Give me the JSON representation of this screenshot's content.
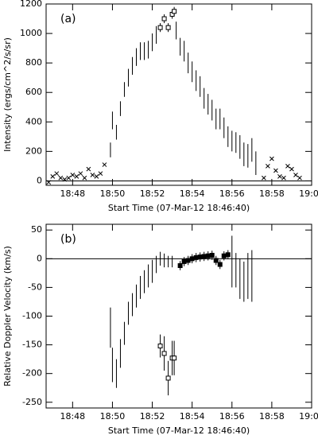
{
  "chart_data": [
    {
      "type": "errorbar",
      "panel_label": "(a)",
      "y_label": "Intensity (ergs/cm^2/s/sr)",
      "x_label": "Start Time (07-Mar-12 18:46:40)",
      "xlim": [
        46.67,
        60
      ],
      "ylim": [
        -30,
        1200
      ],
      "xticks": [
        {
          "value": 48,
          "label": "18:48"
        },
        {
          "value": 50,
          "label": "18:50"
        },
        {
          "value": 52,
          "label": "18:52"
        },
        {
          "value": 54,
          "label": "18:54"
        },
        {
          "value": 56,
          "label": "18:56"
        },
        {
          "value": 58,
          "label": "18:58"
        },
        {
          "value": 60,
          "label": "19:00"
        }
      ],
      "yticks": [
        0,
        200,
        400,
        600,
        800,
        1000,
        1200
      ],
      "reference_line": 0,
      "color": "#000000",
      "series": [
        {
          "marker": "bar",
          "x": [
            49.9,
            50.0,
            50.2,
            50.4,
            50.6,
            50.8,
            51.0,
            51.2,
            51.4,
            51.6,
            51.8,
            52.0,
            52.2,
            53.2,
            53.4,
            53.6,
            53.8,
            54.0,
            54.2,
            54.4,
            54.6,
            54.8,
            55.0,
            55.2,
            55.4,
            55.6,
            55.8,
            56.0,
            56.2,
            56.4,
            56.6,
            56.8,
            57.0,
            57.2
          ],
          "values": [
            210,
            410,
            330,
            490,
            620,
            700,
            780,
            840,
            880,
            880,
            890,
            940,
            990,
            1020,
            910,
            880,
            800,
            740,
            680,
            640,
            560,
            520,
            480,
            420,
            420,
            360,
            300,
            270,
            260,
            230,
            180,
            170,
            210,
            120
          ],
          "errors": [
            50,
            60,
            50,
            50,
            50,
            60,
            60,
            60,
            60,
            60,
            60,
            60,
            60,
            60,
            60,
            70,
            70,
            70,
            70,
            70,
            70,
            70,
            70,
            70,
            70,
            70,
            70,
            70,
            70,
            80,
            80,
            80,
            80,
            80
          ]
        },
        {
          "marker": "square",
          "x": [
            52.4,
            52.6,
            52.8,
            53.0,
            53.1
          ],
          "values": [
            1040,
            1100,
            1040,
            1130,
            1150
          ],
          "errors": [
            30,
            30,
            30,
            30,
            30
          ]
        },
        {
          "marker": "cross",
          "x": [
            46.8,
            47.0,
            47.2,
            47.4,
            47.6,
            47.8,
            48.0,
            48.2,
            48.4,
            48.6,
            48.8,
            49.0,
            49.2,
            49.4,
            49.6,
            57.6,
            57.8,
            58.0,
            58.2,
            58.4,
            58.6,
            58.8,
            59.0,
            59.2,
            59.4
          ],
          "values": [
            -10,
            30,
            50,
            20,
            10,
            20,
            40,
            30,
            50,
            20,
            80,
            40,
            30,
            50,
            110,
            20,
            100,
            150,
            70,
            30,
            20,
            100,
            80,
            40,
            20
          ]
        }
      ]
    },
    {
      "type": "errorbar",
      "panel_label": "(b)",
      "y_label": "Relative Doppler Velocity (km/s)",
      "x_label": "Start Time (07-Mar-12 18:46:40)",
      "xlim": [
        46.67,
        60
      ],
      "ylim": [
        -260,
        60
      ],
      "xticks": [
        {
          "value": 48,
          "label": "18:48"
        },
        {
          "value": 50,
          "label": "18:50"
        },
        {
          "value": 52,
          "label": "18:52"
        },
        {
          "value": 54,
          "label": "18:54"
        },
        {
          "value": 56,
          "label": "18:56"
        },
        {
          "value": 58,
          "label": "18:58"
        },
        {
          "value": 60,
          "label": "19:00"
        }
      ],
      "yticks": [
        50,
        0,
        -50,
        -100,
        -150,
        -200,
        -250
      ],
      "reference_line": 0,
      "color": "#000000",
      "series": [
        {
          "marker": "bar",
          "x": [
            49.9,
            50.0,
            50.2,
            50.4,
            50.6,
            50.8,
            51.0,
            51.2,
            51.4,
            51.6,
            51.8,
            52.0,
            52.2,
            52.4,
            52.6,
            52.8,
            53.0,
            56.0,
            56.2,
            56.4,
            56.6,
            56.8,
            57.0
          ],
          "values": [
            -120,
            -185,
            -200,
            -165,
            -130,
            -95,
            -80,
            -65,
            -50,
            -40,
            -30,
            -22,
            -10,
            0,
            -3,
            -5,
            -5,
            -5,
            -20,
            -35,
            -40,
            -30,
            -30
          ],
          "errors": [
            35,
            30,
            25,
            25,
            20,
            20,
            20,
            20,
            20,
            20,
            20,
            20,
            15,
            12,
            12,
            10,
            10,
            45,
            30,
            35,
            35,
            40,
            45
          ]
        },
        {
          "marker": "square",
          "x": [
            52.4,
            52.6,
            52.8,
            53.0,
            53.1
          ],
          "values": [
            -152,
            -165,
            -208,
            -173,
            -173
          ],
          "errors": [
            20,
            30,
            30,
            30,
            30
          ]
        },
        {
          "marker": "filled-square",
          "x": [
            53.4,
            53.6,
            53.8,
            54.0,
            54.2,
            54.4,
            54.6,
            54.8,
            55.0,
            55.2,
            55.4,
            55.6,
            55.8
          ],
          "values": [
            -12,
            -5,
            -3,
            0,
            2,
            3,
            4,
            5,
            6,
            -3,
            -10,
            5,
            7
          ],
          "errors": [
            8,
            8,
            8,
            8,
            8,
            8,
            8,
            8,
            8,
            8,
            8,
            8,
            8
          ]
        }
      ]
    }
  ]
}
